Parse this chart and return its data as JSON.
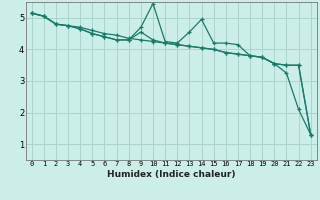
{
  "title": "",
  "xlabel": "Humidex (Indice chaleur)",
  "background_color": "#cceee8",
  "grid_color": "#aad4cc",
  "line_color": "#1a7a6a",
  "xlim": [
    -0.5,
    23.5
  ],
  "ylim": [
    0.5,
    5.5
  ],
  "yticks": [
    1,
    2,
    3,
    4,
    5
  ],
  "xticks": [
    0,
    1,
    2,
    3,
    4,
    5,
    6,
    7,
    8,
    9,
    10,
    11,
    12,
    13,
    14,
    15,
    16,
    17,
    18,
    19,
    20,
    21,
    22,
    23
  ],
  "series": [
    [
      5.15,
      5.05,
      4.8,
      4.75,
      4.7,
      4.6,
      4.5,
      4.45,
      4.35,
      4.3,
      4.25,
      4.2,
      4.15,
      4.1,
      4.05,
      4.0,
      3.9,
      3.85,
      3.8,
      3.75,
      3.55,
      3.5,
      3.5,
      1.3
    ],
    [
      5.15,
      5.05,
      4.8,
      4.75,
      4.65,
      4.5,
      4.4,
      4.3,
      4.3,
      4.7,
      5.45,
      4.25,
      4.2,
      4.55,
      4.95,
      4.2,
      4.2,
      4.15,
      3.8,
      3.75,
      3.55,
      3.25,
      2.1,
      1.3
    ],
    [
      5.15,
      5.05,
      4.8,
      4.75,
      4.65,
      4.5,
      4.4,
      4.3,
      4.3,
      4.55,
      4.3,
      4.2,
      4.15,
      4.1,
      4.05,
      4.0,
      3.9,
      3.85,
      3.8,
      3.75,
      3.55,
      3.5,
      3.5,
      1.3
    ]
  ]
}
